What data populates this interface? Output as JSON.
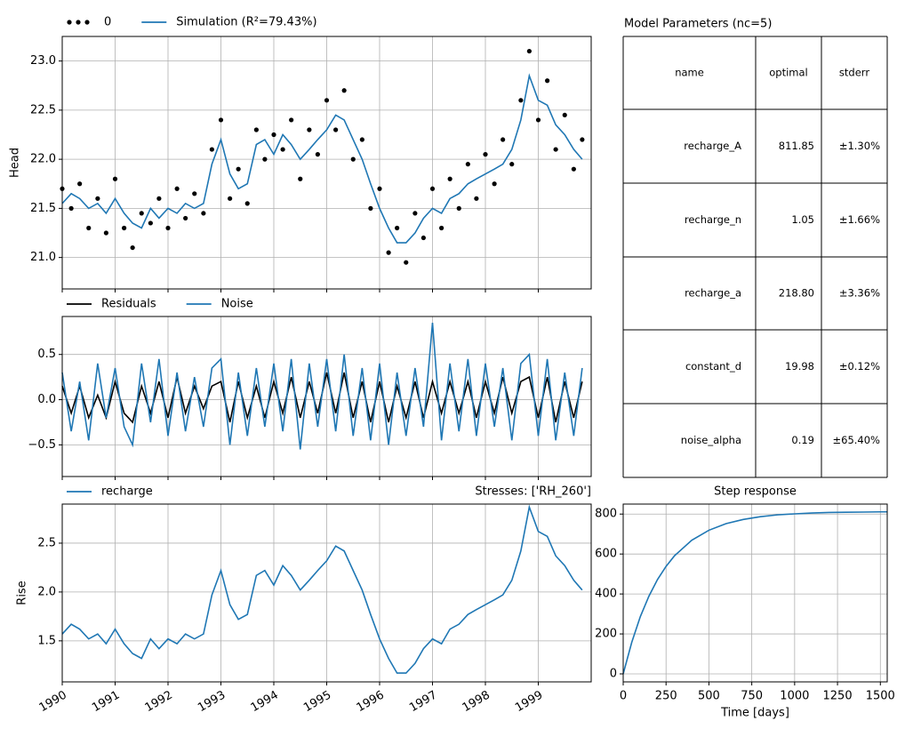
{
  "chart_data": [
    {
      "type": "line",
      "ylabel": "Head",
      "xlim": [
        1990,
        2000
      ],
      "ylim": [
        20.68,
        23.25
      ],
      "yticks": [
        {
          "value": 21,
          "label": "21.0"
        },
        21.5,
        {
          "value": 22,
          "label": "22.0"
        },
        22.5,
        {
          "value": 23,
          "label": "23.0"
        }
      ],
      "grid": true,
      "x": [
        1990,
        1990.17,
        1990.33,
        1990.5,
        1990.67,
        1990.83,
        1991,
        1991.17,
        1991.33,
        1991.5,
        1991.67,
        1991.83,
        1992,
        1992.17,
        1992.33,
        1992.5,
        1992.67,
        1992.83,
        1993,
        1993.17,
        1993.33,
        1993.5,
        1993.67,
        1993.83,
        1994,
        1994.17,
        1994.33,
        1994.5,
        1994.67,
        1994.83,
        1995,
        1995.17,
        1995.33,
        1995.5,
        1995.67,
        1995.83,
        1996,
        1996.17,
        1996.33,
        1996.5,
        1996.67,
        1996.83,
        1997,
        1997.17,
        1997.33,
        1997.5,
        1997.67,
        1997.83,
        1998,
        1998.17,
        1998.33,
        1998.5,
        1998.67,
        1998.83,
        1999,
        1999.17,
        1999.33,
        1999.5,
        1999.67,
        1999.83
      ],
      "series": [
        {
          "name": "0",
          "color": "#000000",
          "marker": "dot",
          "values": [
            21.7,
            21.5,
            21.75,
            21.3,
            21.6,
            21.25,
            21.8,
            21.3,
            21.1,
            21.45,
            21.35,
            21.6,
            21.3,
            21.7,
            21.4,
            21.65,
            21.45,
            22.1,
            22.4,
            21.6,
            21.9,
            21.55,
            22.3,
            22.0,
            22.25,
            22.1,
            22.4,
            21.8,
            22.3,
            22.05,
            22.6,
            22.3,
            22.7,
            22.0,
            22.2,
            21.5,
            21.7,
            21.05,
            21.3,
            20.95,
            21.45,
            21.2,
            21.7,
            21.3,
            21.8,
            21.5,
            21.95,
            21.6,
            22.05,
            21.75,
            22.2,
            21.95,
            22.6,
            23.1,
            22.4,
            22.8,
            22.1,
            22.45,
            21.9,
            22.2
          ]
        },
        {
          "name": "Simulation (R²=79.43%)",
          "color": "#1f77b4",
          "values": [
            21.55,
            21.65,
            21.6,
            21.5,
            21.55,
            21.45,
            21.6,
            21.45,
            21.35,
            21.3,
            21.5,
            21.4,
            21.5,
            21.45,
            21.55,
            21.5,
            21.55,
            21.95,
            22.2,
            21.85,
            21.7,
            21.75,
            22.15,
            22.2,
            22.05,
            22.25,
            22.15,
            22,
            22.1,
            22.2,
            22.3,
            22.45,
            22.4,
            22.2,
            22,
            21.75,
            21.5,
            21.3,
            21.15,
            21.15,
            21.25,
            21.4,
            21.5,
            21.45,
            21.6,
            21.65,
            21.75,
            21.8,
            21.85,
            21.9,
            21.95,
            22.1,
            22.4,
            22.85,
            22.6,
            22.55,
            22.35,
            22.25,
            22.1,
            22
          ]
        }
      ]
    },
    {
      "type": "line",
      "xlim": [
        1990,
        2000
      ],
      "ylim": [
        -0.85,
        0.92
      ],
      "yticks": [
        {
          "value": -0.5,
          "label": "−0.5"
        },
        {
          "value": 0,
          "label": "0.0"
        },
        0.5
      ],
      "grid": true,
      "x": [
        1990,
        1990.17,
        1990.33,
        1990.5,
        1990.67,
        1990.83,
        1991,
        1991.17,
        1991.33,
        1991.5,
        1991.67,
        1991.83,
        1992,
        1992.17,
        1992.33,
        1992.5,
        1992.67,
        1992.83,
        1993,
        1993.17,
        1993.33,
        1993.5,
        1993.67,
        1993.83,
        1994,
        1994.17,
        1994.33,
        1994.5,
        1994.67,
        1994.83,
        1995,
        1995.17,
        1995.33,
        1995.5,
        1995.67,
        1995.83,
        1996,
        1996.17,
        1996.33,
        1996.5,
        1996.67,
        1996.83,
        1997,
        1997.17,
        1997.33,
        1997.5,
        1997.67,
        1997.83,
        1998,
        1998.17,
        1998.33,
        1998.5,
        1998.67,
        1998.83,
        1999,
        1999.17,
        1999.33,
        1999.5,
        1999.67,
        1999.83
      ],
      "series": [
        {
          "name": "Residuals",
          "color": "#000000",
          "values": [
            0.15,
            -0.15,
            0.15,
            -0.2,
            0.05,
            -0.2,
            0.2,
            -0.15,
            -0.25,
            0.15,
            -0.15,
            0.2,
            -0.2,
            0.25,
            -0.15,
            0.15,
            -0.1,
            0.15,
            0.2,
            -0.25,
            0.2,
            -0.2,
            0.15,
            -0.2,
            0.2,
            -0.15,
            0.25,
            -0.2,
            0.2,
            -0.15,
            0.3,
            -0.15,
            0.3,
            -0.2,
            0.2,
            -0.25,
            0.2,
            -0.25,
            0.15,
            -0.2,
            0.2,
            -0.2,
            0.2,
            -0.15,
            0.2,
            -0.15,
            0.2,
            -0.2,
            0.2,
            -0.15,
            0.25,
            -0.15,
            0.2,
            0.25,
            -0.2,
            0.25,
            -0.25,
            0.2,
            -0.2,
            0.2
          ]
        },
        {
          "name": "Noise",
          "color": "#1f77b4",
          "values": [
            0.3,
            -0.35,
            0.2,
            -0.45,
            0.4,
            -0.2,
            0.35,
            -0.3,
            -0.5,
            0.4,
            -0.25,
            0.45,
            -0.4,
            0.3,
            -0.35,
            0.25,
            -0.3,
            0.35,
            0.45,
            -0.5,
            0.3,
            -0.4,
            0.35,
            -0.3,
            0.4,
            -0.35,
            0.45,
            -0.55,
            0.4,
            -0.3,
            0.45,
            -0.35,
            0.5,
            -0.4,
            0.35,
            -0.45,
            0.4,
            -0.5,
            0.3,
            -0.4,
            0.35,
            -0.3,
            0.85,
            -0.45,
            0.4,
            -0.35,
            0.45,
            -0.4,
            0.4,
            -0.3,
            0.35,
            -0.45,
            0.4,
            0.5,
            -0.4,
            0.45,
            -0.45,
            0.3,
            -0.4,
            0.35
          ]
        }
      ]
    },
    {
      "type": "line",
      "title": "Stresses: ['RH_260']",
      "ylabel": "Rise",
      "xlim": [
        1990,
        2000
      ],
      "ylim": [
        1.08,
        2.9
      ],
      "xticks": [
        1990,
        1991,
        1992,
        1993,
        1994,
        1995,
        1996,
        1997,
        1998,
        1999
      ],
      "yticks": [
        1.5,
        {
          "value": 2,
          "label": "2.0"
        },
        2.5
      ],
      "grid": true,
      "x": [
        1990,
        1990.17,
        1990.33,
        1990.5,
        1990.67,
        1990.83,
        1991,
        1991.17,
        1991.33,
        1991.5,
        1991.67,
        1991.83,
        1992,
        1992.17,
        1992.33,
        1992.5,
        1992.67,
        1992.83,
        1993,
        1993.17,
        1993.33,
        1993.5,
        1993.67,
        1993.83,
        1994,
        1994.17,
        1994.33,
        1994.5,
        1994.67,
        1994.83,
        1995,
        1995.17,
        1995.33,
        1995.5,
        1995.67,
        1995.83,
        1996,
        1996.17,
        1996.33,
        1996.5,
        1996.67,
        1996.83,
        1997,
        1997.17,
        1997.33,
        1997.5,
        1997.67,
        1997.83,
        1998,
        1998.17,
        1998.33,
        1998.5,
        1998.67,
        1998.83,
        1999,
        1999.17,
        1999.33,
        1999.5,
        1999.67,
        1999.83
      ],
      "series": [
        {
          "name": "recharge",
          "color": "#1f77b4",
          "values": [
            1.57,
            1.67,
            1.62,
            1.52,
            1.57,
            1.47,
            1.62,
            1.47,
            1.37,
            1.32,
            1.52,
            1.42,
            1.52,
            1.47,
            1.57,
            1.52,
            1.57,
            1.97,
            2.22,
            1.87,
            1.72,
            1.77,
            2.17,
            2.22,
            2.07,
            2.27,
            2.17,
            2.02,
            2.12,
            2.22,
            2.32,
            2.47,
            2.42,
            2.22,
            2.02,
            1.77,
            1.52,
            1.32,
            1.17,
            1.17,
            1.27,
            1.42,
            1.52,
            1.47,
            1.62,
            1.67,
            1.77,
            1.82,
            1.87,
            1.92,
            1.97,
            2.12,
            2.42,
            2.87,
            2.62,
            2.57,
            2.37,
            2.27,
            2.12,
            2.02
          ]
        }
      ]
    },
    {
      "type": "line",
      "title": "Step response",
      "xlabel": "Time [days]",
      "xlim": [
        0,
        1540
      ],
      "ylim": [
        -40,
        850
      ],
      "xticks": [
        0,
        250,
        500,
        750,
        1000,
        1250,
        1500
      ],
      "yticks": [
        0,
        200,
        400,
        600,
        800
      ],
      "grid": true,
      "x": [
        0,
        50,
        100,
        150,
        200,
        250,
        300,
        400,
        500,
        600,
        700,
        800,
        900,
        1000,
        1100,
        1200,
        1300,
        1400,
        1500,
        1540
      ],
      "series": [
        {
          "color": "#1f77b4",
          "values": [
            0,
            158,
            287,
            389,
            472,
            538,
            592,
            669,
            719,
            752,
            773,
            787,
            796,
            801,
            805,
            808,
            809,
            810,
            811,
            811
          ]
        }
      ]
    }
  ],
  "table": {
    "title": "Model Parameters (nc=5)",
    "header": [
      "name",
      "optimal",
      "stderr"
    ],
    "rows": [
      [
        "recharge_A",
        "811.85",
        "±1.30%"
      ],
      [
        "recharge_n",
        "1.05",
        "±1.66%"
      ],
      [
        "recharge_a",
        "218.80",
        "±3.36%"
      ],
      [
        "constant_d",
        "19.98",
        "±0.12%"
      ],
      [
        "noise_alpha",
        "0.19",
        "±65.40%"
      ]
    ]
  }
}
